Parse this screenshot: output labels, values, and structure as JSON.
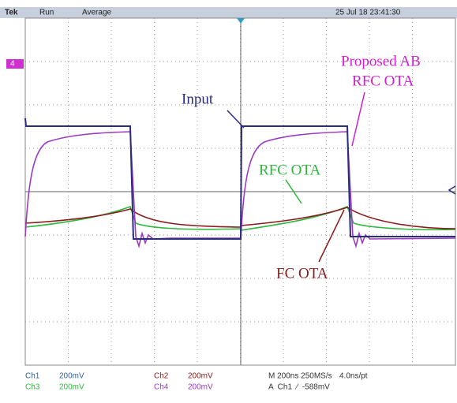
{
  "status_bar": {
    "brand": "Tek",
    "state": "Run",
    "mode": "Average",
    "timestamp": "25 Jul 18 23:41:30"
  },
  "channel_marker": "4",
  "annotations": {
    "proposed_line1": "Proposed AB",
    "proposed_line2": "RFC OTA",
    "input": "Input",
    "rfc": "RFC OTA",
    "fc": "FC OTA"
  },
  "readout": {
    "ch1": {
      "name": "Ch1",
      "scale": "200mV"
    },
    "ch2": {
      "name": "Ch2",
      "scale": "200mV"
    },
    "ch3": {
      "name": "Ch3",
      "scale": "200mV"
    },
    "ch4": {
      "name": "Ch4",
      "scale": "200mV"
    },
    "timebase": "M 200ns 250MS/s",
    "resolution": "4.0ns/pt",
    "trigger": "A  Ch1  ∕  -588mV"
  }
}
